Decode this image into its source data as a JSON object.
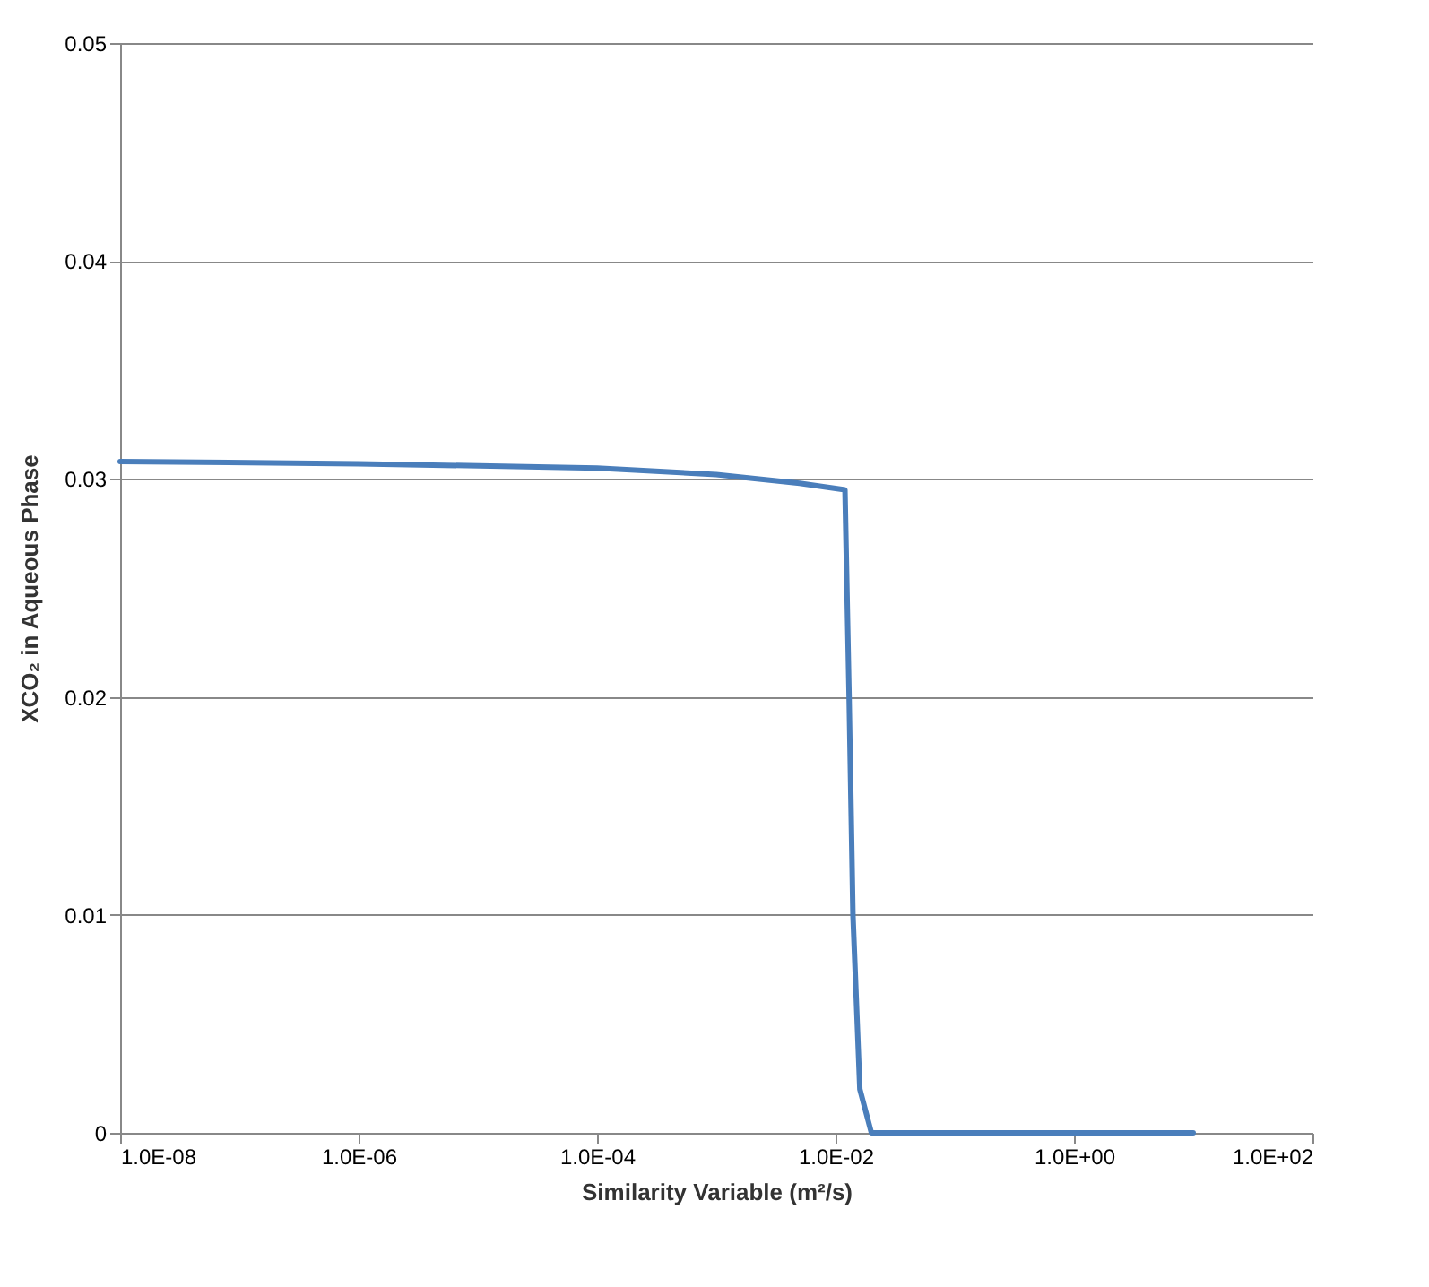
{
  "chart_data": {
    "type": "line",
    "xlabel": "Similarity Variable (m²/s)",
    "ylabel": "XCO₂ in Aqueous Phase",
    "log": "x",
    "xlim": [
      1e-08,
      100
    ],
    "xticks": [
      {
        "value": 1e-08,
        "label": "1.0E-08"
      },
      {
        "value": 1e-06,
        "label": "1.0E-06"
      },
      {
        "value": 0.0001,
        "label": "1.0E-04"
      },
      {
        "value": 0.01,
        "label": "1.0E-02"
      },
      {
        "value": 1,
        "label": "1.0E+00"
      },
      {
        "value": 100,
        "label": "1.0E+02"
      }
    ],
    "ylim": [
      0,
      0.05
    ],
    "yticks": [
      0,
      0.01,
      0.02,
      0.03,
      0.04,
      0.05
    ],
    "grid": "y",
    "marker": "none",
    "line_style": "solid",
    "series": [
      {
        "color": "#4a7ebb",
        "x": [
          1e-08,
          1e-06,
          0.0001,
          0.001,
          0.005,
          0.012,
          0.013,
          0.014,
          0.016,
          0.02,
          10
        ],
        "values": [
          0.0308,
          0.0307,
          0.0305,
          0.0302,
          0.0298,
          0.0295,
          0.02,
          0.01,
          0.002,
          0,
          0
        ]
      }
    ]
  }
}
